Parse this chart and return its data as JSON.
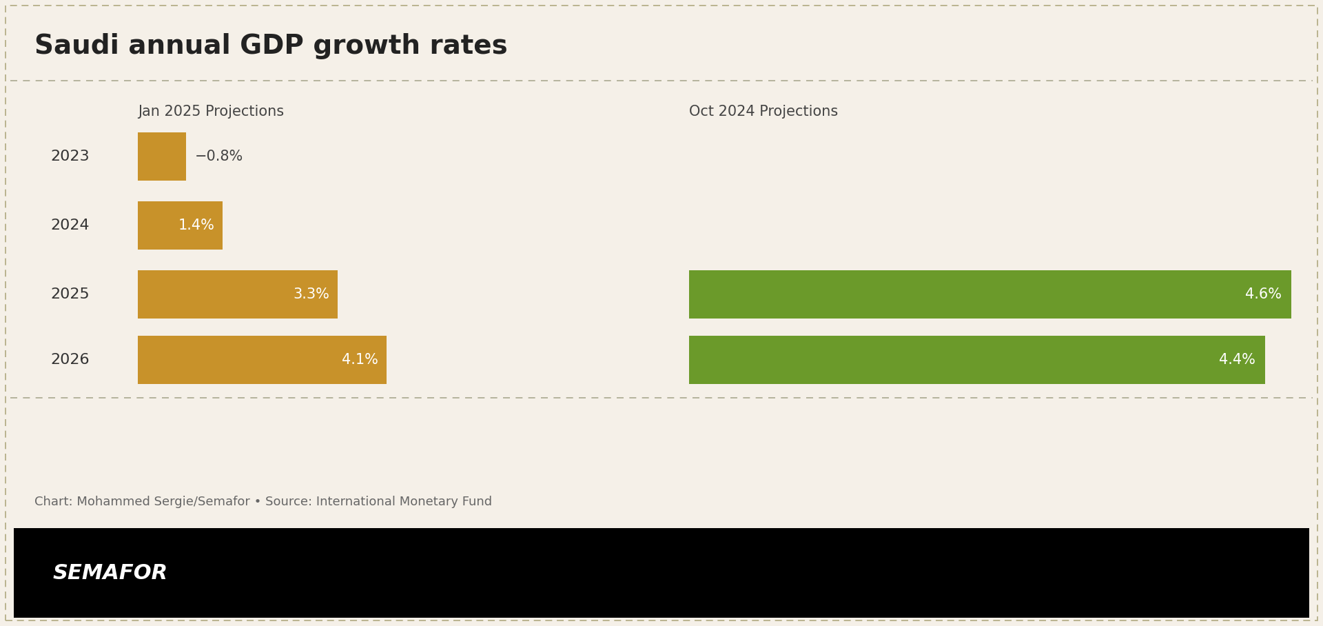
{
  "title": "Saudi annual GDP growth rates",
  "background_color": "#f5f0e8",
  "border_color": "#b0aa80",
  "years": [
    "2023",
    "2024",
    "2025",
    "2026"
  ],
  "jan2025_label": "Jan 2025 Projections",
  "oct2024_label": "Oct 2024 Projections",
  "jan2025_values": [
    -0.8,
    1.4,
    3.3,
    4.1
  ],
  "oct2024_values": [
    null,
    null,
    4.6,
    4.4
  ],
  "jan2025_color": "#c8922a",
  "oct2024_color": "#6b9a2a",
  "jan2025_labels": [
    "−0.8%",
    "1.4%",
    "3.3%",
    "4.1%"
  ],
  "oct2024_labels": [
    "4.6%",
    "4.4%"
  ],
  "label_color_inside": "#ffffff",
  "label_color_outside": "#444444",
  "title_fontsize": 28,
  "label_fontsize": 15,
  "year_fontsize": 16,
  "section_label_fontsize": 15,
  "footer_text": "Chart: Mohammed Sergie/Semafor • Source: International Monetary Fund",
  "footer_fontsize": 13,
  "semafor_text": "SEMAFOR",
  "semafor_bg": "#000000",
  "semafor_color": "#ffffff",
  "semafor_fontsize": 22
}
